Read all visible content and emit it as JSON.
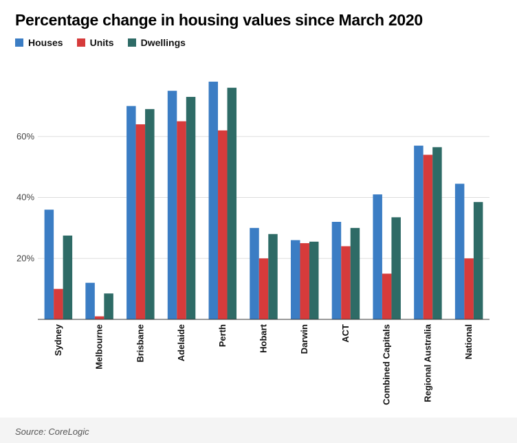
{
  "chart_data": {
    "type": "bar",
    "title": "Percentage change in housing values since March 2020",
    "xlabel": "",
    "ylabel": "",
    "ylim": [
      0,
      80
    ],
    "yticks": [
      20,
      40,
      60
    ],
    "ytick_labels": [
      "20%",
      "40%",
      "60%"
    ],
    "grid": true,
    "legend_position": "top-left",
    "categories": [
      "Sydney",
      "Melbourne",
      "Brisbane",
      "Adelaide",
      "Perth",
      "Hobart",
      "Darwin",
      "ACT",
      "Combined Capitals",
      "Regional Australia",
      "National"
    ],
    "series": [
      {
        "name": "Houses",
        "color": "#3b7dc4",
        "values": [
          36,
          12,
          70,
          75,
          78,
          30,
          26,
          32,
          41,
          57,
          44.5
        ]
      },
      {
        "name": "Units",
        "color": "#d63b3b",
        "values": [
          10,
          1,
          64,
          65,
          62,
          20,
          25,
          24,
          15,
          54,
          20
        ]
      },
      {
        "name": "Dwellings",
        "color": "#2e6b66",
        "values": [
          27.5,
          8.5,
          69,
          73,
          76,
          28,
          25.5,
          30,
          33.5,
          56.5,
          38.5
        ]
      }
    ]
  },
  "source": "Source: CoreLogic"
}
